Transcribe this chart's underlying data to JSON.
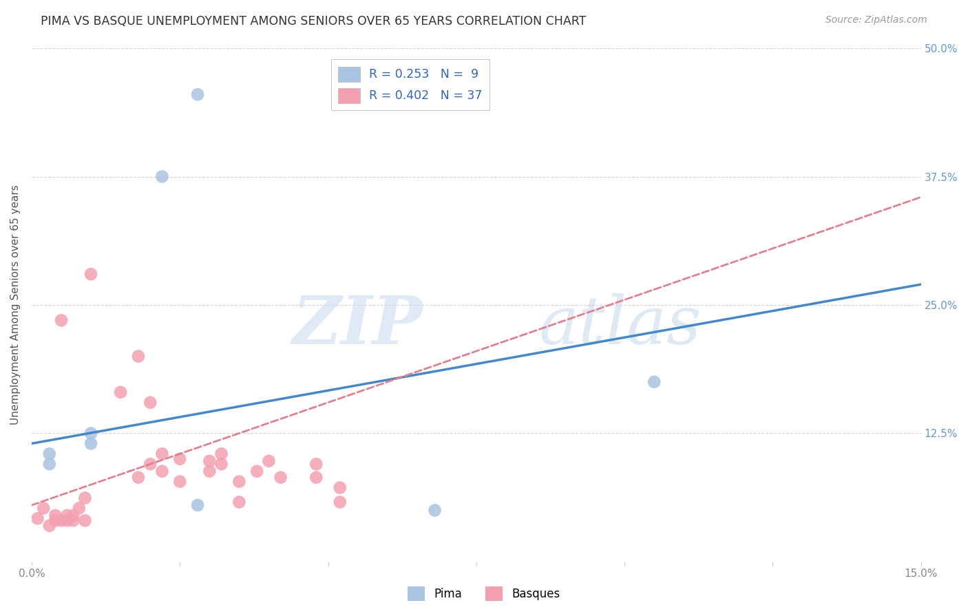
{
  "title": "PIMA VS BASQUE UNEMPLOYMENT AMONG SENIORS OVER 65 YEARS CORRELATION CHART",
  "source": "Source: ZipAtlas.com",
  "ylabel": "Unemployment Among Seniors over 65 years",
  "xlim": [
    0.0,
    0.15
  ],
  "ylim": [
    0.0,
    0.5
  ],
  "ytick_labels": [
    "12.5%",
    "25.0%",
    "37.5%",
    "50.0%"
  ],
  "ytick_positions": [
    0.125,
    0.25,
    0.375,
    0.5
  ],
  "background_color": "#ffffff",
  "grid_color": "#d0d0d0",
  "pima_color": "#a8c4e0",
  "basque_color": "#f4a0b0",
  "pima_line_color": "#4488cc",
  "basque_line_color": "#e08090",
  "pima_R": 0.253,
  "pima_N": 9,
  "basque_R": 0.402,
  "basque_N": 37,
  "pima_points": [
    [
      0.028,
      0.455
    ],
    [
      0.022,
      0.375
    ],
    [
      0.01,
      0.125
    ],
    [
      0.01,
      0.115
    ],
    [
      0.003,
      0.105
    ],
    [
      0.003,
      0.095
    ],
    [
      0.028,
      0.055
    ],
    [
      0.105,
      0.175
    ],
    [
      0.068,
      0.05
    ]
  ],
  "basque_points": [
    [
      0.01,
      0.28
    ],
    [
      0.005,
      0.235
    ],
    [
      0.018,
      0.2
    ],
    [
      0.015,
      0.165
    ],
    [
      0.02,
      0.155
    ],
    [
      0.022,
      0.105
    ],
    [
      0.025,
      0.1
    ],
    [
      0.02,
      0.095
    ],
    [
      0.022,
      0.088
    ],
    [
      0.018,
      0.082
    ],
    [
      0.025,
      0.078
    ],
    [
      0.03,
      0.098
    ],
    [
      0.03,
      0.088
    ],
    [
      0.032,
      0.105
    ],
    [
      0.032,
      0.095
    ],
    [
      0.035,
      0.078
    ],
    [
      0.038,
      0.088
    ],
    [
      0.04,
      0.098
    ],
    [
      0.042,
      0.082
    ],
    [
      0.035,
      0.058
    ],
    [
      0.048,
      0.082
    ],
    [
      0.048,
      0.095
    ],
    [
      0.052,
      0.058
    ],
    [
      0.052,
      0.072
    ],
    [
      0.001,
      0.042
    ],
    [
      0.002,
      0.052
    ],
    [
      0.003,
      0.035
    ],
    [
      0.004,
      0.045
    ],
    [
      0.004,
      0.04
    ],
    [
      0.005,
      0.04
    ],
    [
      0.006,
      0.045
    ],
    [
      0.006,
      0.04
    ],
    [
      0.007,
      0.045
    ],
    [
      0.007,
      0.04
    ],
    [
      0.008,
      0.052
    ],
    [
      0.009,
      0.062
    ],
    [
      0.009,
      0.04
    ]
  ],
  "pima_line_x": [
    0.0,
    0.15
  ],
  "pima_line_y": [
    0.115,
    0.27
  ],
  "basque_line_x": [
    0.0,
    0.15
  ],
  "basque_line_y": [
    0.055,
    0.355
  ]
}
